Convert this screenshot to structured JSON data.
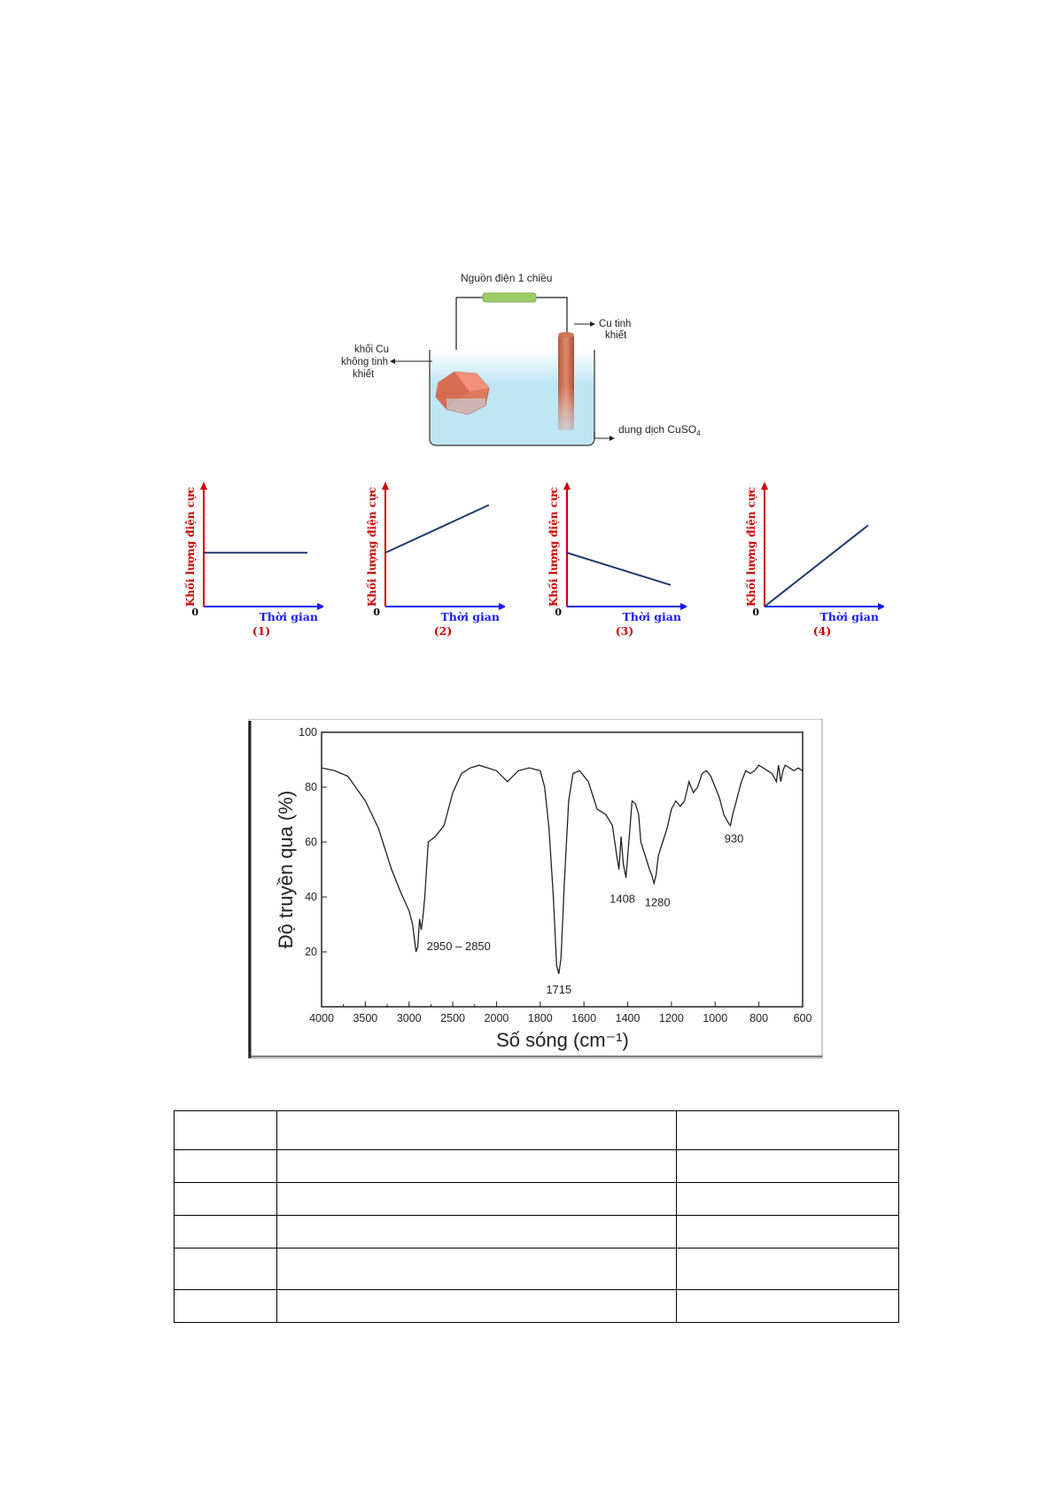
{
  "apparatus": {
    "power_label": "Nguồn điện 1 chiều",
    "pure_cu_label": [
      "Cu tinh",
      "khiết"
    ],
    "impure_cu_label": [
      "khối Cu",
      "không tinh",
      "khiết"
    ],
    "solution_label": "dung dịch CuSO",
    "solution_subscript": "4",
    "colors": {
      "power_bar": "#9ccc65",
      "copper": "#e07a5f",
      "rod": "#c8664a",
      "solution": "#bfe6f5"
    }
  },
  "mini_graphs": {
    "y_label": "Khối lượng điện cực",
    "x_label": "Thời gian",
    "origin_label": "0",
    "panels": [
      {
        "caption": "(1)",
        "trend": "constant",
        "start": 0.45,
        "end": 0.45
      },
      {
        "caption": "(2)",
        "trend": "increase",
        "start": 0.45,
        "end": 0.85
      },
      {
        "caption": "(3)",
        "trend": "decrease",
        "start": 0.45,
        "end": 0.18
      },
      {
        "caption": "(4)",
        "trend": "increase_from_zero",
        "start": 0.0,
        "end": 0.68
      }
    ],
    "colors": {
      "axis_y": "#cc0000",
      "axis_x": "#1a1aff",
      "line": "#1f3a6e",
      "caption": "#cc0000"
    }
  },
  "chart_data": {
    "type": "line",
    "title": "",
    "xlabel": "Số sóng (cm⁻¹)",
    "ylabel": "Độ truyền qua (%)",
    "xlim": [
      4000,
      600
    ],
    "ylim": [
      0,
      100
    ],
    "xticks": [
      4000,
      3500,
      3000,
      2500,
      2000,
      1800,
      1600,
      1400,
      1200,
      1000,
      800,
      600
    ],
    "yticks": [
      20,
      40,
      60,
      80,
      100
    ],
    "x_scale": "piecewise: 4000-2000 half-density, 2000-600 full-density",
    "annotations": [
      {
        "text": "2950 – 2850",
        "x": 2900,
        "y": 20
      },
      {
        "text": "1715",
        "x": 1715,
        "y": 12
      },
      {
        "text": "1408",
        "x": 1408,
        "y": 47
      },
      {
        "text": "1280",
        "x": 1280,
        "y": 45
      },
      {
        "text": "930",
        "x": 930,
        "y": 67
      }
    ],
    "series": [
      {
        "x": [
          4000,
          3850,
          3700,
          3500,
          3350,
          3200,
          3100,
          3000,
          2960,
          2920,
          2900,
          2880,
          2860,
          2840,
          2820,
          2780,
          2700,
          2600,
          2500,
          2400,
          2300,
          2200,
          2100,
          2000,
          1950,
          1900,
          1850,
          1800,
          1780,
          1760,
          1740,
          1725,
          1715,
          1705,
          1690,
          1670,
          1650,
          1620,
          1580,
          1540,
          1500,
          1470,
          1450,
          1440,
          1430,
          1420,
          1408,
          1395,
          1380,
          1365,
          1350,
          1340,
          1320,
          1300,
          1290,
          1280,
          1270,
          1260,
          1240,
          1220,
          1200,
          1180,
          1160,
          1140,
          1120,
          1100,
          1080,
          1060,
          1040,
          1020,
          1000,
          980,
          960,
          940,
          930,
          920,
          900,
          880,
          860,
          840,
          820,
          800,
          780,
          760,
          740,
          720,
          710,
          700,
          690,
          680,
          660,
          640,
          620,
          600
        ],
        "y": [
          87,
          86,
          84,
          75,
          65,
          50,
          42,
          35,
          30,
          20,
          22,
          32,
          28,
          33,
          40,
          60,
          62,
          66,
          78,
          85,
          87,
          88,
          87,
          86,
          82,
          86,
          87,
          86,
          80,
          65,
          40,
          15,
          12,
          18,
          45,
          75,
          85,
          86,
          82,
          72,
          70,
          66,
          55,
          50,
          62,
          52,
          47,
          60,
          75,
          74,
          70,
          60,
          55,
          50,
          48,
          45,
          48,
          55,
          60,
          65,
          72,
          75,
          73,
          75,
          82,
          78,
          80,
          85,
          86,
          84,
          80,
          76,
          70,
          67,
          66,
          70,
          76,
          82,
          86,
          85,
          86,
          88,
          87,
          86,
          85,
          82,
          88,
          82,
          86,
          88,
          87,
          86,
          87,
          86
        ]
      }
    ]
  }
}
